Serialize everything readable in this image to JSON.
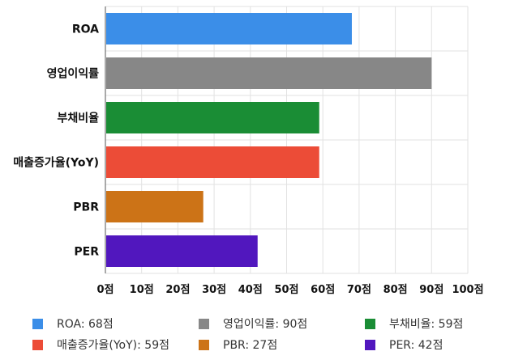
{
  "chart_data": {
    "type": "bar",
    "orientation": "horizontal",
    "categories": [
      "ROA",
      "영업이익률",
      "부채비율",
      "매출증가율(YoY)",
      "PBR",
      "PER"
    ],
    "values": [
      68,
      90,
      59,
      59,
      27,
      42
    ],
    "colors": [
      "#3b8ee8",
      "#878787",
      "#1a8d35",
      "#ec4c37",
      "#cc7317",
      "#5117be"
    ],
    "xlim": [
      0,
      100
    ],
    "xticks": [
      0,
      10,
      20,
      30,
      40,
      50,
      60,
      70,
      80,
      90,
      100
    ],
    "tick_suffix": "점",
    "grid": true,
    "legend_position": "bottom",
    "legend": [
      {
        "label": "ROA: 68점",
        "color": "#3b8ee8"
      },
      {
        "label": "영업이익률: 90점",
        "color": "#878787"
      },
      {
        "label": "부채비율: 59점",
        "color": "#1a8d35"
      },
      {
        "label": "매출증가율(YoY): 59점",
        "color": "#ec4c37"
      },
      {
        "label": "PBR: 27점",
        "color": "#cc7317"
      },
      {
        "label": "PER: 42점",
        "color": "#5117be"
      }
    ]
  }
}
